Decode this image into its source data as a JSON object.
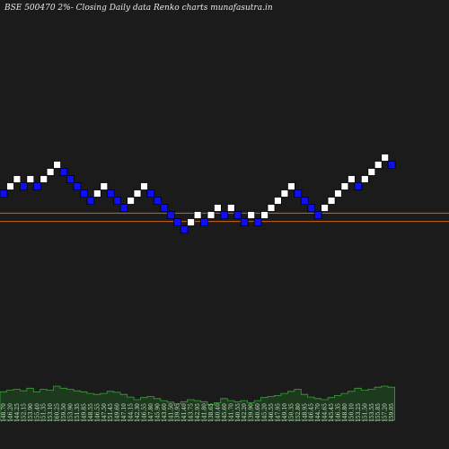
{
  "title": "BSE 500470  2%-   Closing Daily data  Renko  charts munafasutra.in",
  "colors": {
    "background": "#1b1b1b",
    "up_brick": "#ffffff",
    "down_brick": "#1010ee",
    "brick_border": "#000000",
    "reference_line": "#c8651e",
    "volume_fill": "#1e3a1e",
    "volume_stroke": "#3aa03a"
  },
  "chart_data": {
    "type": "renko",
    "title": "BSE 500470  2%-   Closing Daily data  Renko  charts munafasutra.in",
    "brick_size_label": "2%",
    "reference_lines": [
      144.3,
      142.1
    ],
    "bricks": [
      {
        "dir": "down",
        "level": 149.5
      },
      {
        "dir": "up",
        "level": 151.4
      },
      {
        "dir": "up",
        "level": 153.3
      },
      {
        "dir": "down",
        "level": 151.4
      },
      {
        "dir": "up",
        "level": 153.3
      },
      {
        "dir": "down",
        "level": 151.4
      },
      {
        "dir": "up",
        "level": 153.3
      },
      {
        "dir": "up",
        "level": 155.2
      },
      {
        "dir": "up",
        "level": 157.1
      },
      {
        "dir": "down",
        "level": 155.2
      },
      {
        "dir": "down",
        "level": 153.3
      },
      {
        "dir": "down",
        "level": 151.4
      },
      {
        "dir": "down",
        "level": 149.5
      },
      {
        "dir": "down",
        "level": 147.6
      },
      {
        "dir": "up",
        "level": 149.5
      },
      {
        "dir": "up",
        "level": 151.4
      },
      {
        "dir": "down",
        "level": 149.5
      },
      {
        "dir": "down",
        "level": 147.6
      },
      {
        "dir": "down",
        "level": 145.7
      },
      {
        "dir": "up",
        "level": 147.6
      },
      {
        "dir": "up",
        "level": 149.5
      },
      {
        "dir": "up",
        "level": 151.4
      },
      {
        "dir": "down",
        "level": 149.5
      },
      {
        "dir": "down",
        "level": 147.6
      },
      {
        "dir": "down",
        "level": 145.7
      },
      {
        "dir": "down",
        "level": 143.8
      },
      {
        "dir": "down",
        "level": 141.9
      },
      {
        "dir": "down",
        "level": 140.0
      },
      {
        "dir": "up",
        "level": 141.9
      },
      {
        "dir": "up",
        "level": 143.8
      },
      {
        "dir": "down",
        "level": 141.9
      },
      {
        "dir": "up",
        "level": 143.8
      },
      {
        "dir": "up",
        "level": 145.7
      },
      {
        "dir": "down",
        "level": 143.8
      },
      {
        "dir": "up",
        "level": 145.7
      },
      {
        "dir": "down",
        "level": 143.8
      },
      {
        "dir": "down",
        "level": 141.9
      },
      {
        "dir": "up",
        "level": 143.8
      },
      {
        "dir": "down",
        "level": 141.9
      },
      {
        "dir": "up",
        "level": 143.8
      },
      {
        "dir": "up",
        "level": 145.7
      },
      {
        "dir": "up",
        "level": 147.6
      },
      {
        "dir": "up",
        "level": 149.5
      },
      {
        "dir": "up",
        "level": 151.4
      },
      {
        "dir": "down",
        "level": 149.5
      },
      {
        "dir": "down",
        "level": 147.6
      },
      {
        "dir": "down",
        "level": 145.7
      },
      {
        "dir": "down",
        "level": 143.8
      },
      {
        "dir": "up",
        "level": 145.7
      },
      {
        "dir": "up",
        "level": 147.6
      },
      {
        "dir": "up",
        "level": 149.5
      },
      {
        "dir": "up",
        "level": 151.4
      },
      {
        "dir": "up",
        "level": 153.3
      },
      {
        "dir": "down",
        "level": 151.4
      },
      {
        "dir": "up",
        "level": 153.3
      },
      {
        "dir": "up",
        "level": 155.2
      },
      {
        "dir": "up",
        "level": 157.1
      },
      {
        "dir": "up",
        "level": 159.0
      },
      {
        "dir": "down",
        "level": 157.1
      }
    ],
    "volume_labels": [
      "148.70",
      "146.20",
      "144.25",
      "152.15",
      "153.90",
      "155.40",
      "151.35",
      "153.10",
      "160.25",
      "159.50",
      "153.90",
      "151.35",
      "149.85",
      "148.55",
      "146.55",
      "147.50",
      "151.45",
      "149.60",
      "147.10",
      "144.15",
      "142.30",
      "146.55",
      "147.80",
      "145.90",
      "143.60",
      "141.50",
      "139.95",
      "141.40",
      "143.75",
      "142.95",
      "141.80",
      "138.65",
      "140.40",
      "145.60",
      "141.70",
      "140.55",
      "142.20",
      "139.90",
      "140.60",
      "145.20",
      "146.55",
      "147.95",
      "149.10",
      "150.35",
      "152.80",
      "148.95",
      "146.45",
      "144.70",
      "144.65",
      "145.45",
      "146.35",
      "148.80",
      "150.10",
      "153.25",
      "151.50",
      "153.55",
      "155.85",
      "157.20",
      "159.05"
    ],
    "volumes": [
      55,
      58,
      60,
      57,
      62,
      55,
      60,
      58,
      66,
      62,
      60,
      57,
      55,
      52,
      50,
      52,
      56,
      54,
      50,
      45,
      40,
      44,
      46,
      42,
      38,
      35,
      32,
      36,
      40,
      38,
      36,
      30,
      34,
      42,
      38,
      36,
      38,
      34,
      38,
      44,
      46,
      48,
      52,
      56,
      60,
      50,
      45,
      42,
      40,
      44,
      48,
      52,
      56,
      62,
      58,
      60,
      64,
      66,
      64
    ]
  }
}
